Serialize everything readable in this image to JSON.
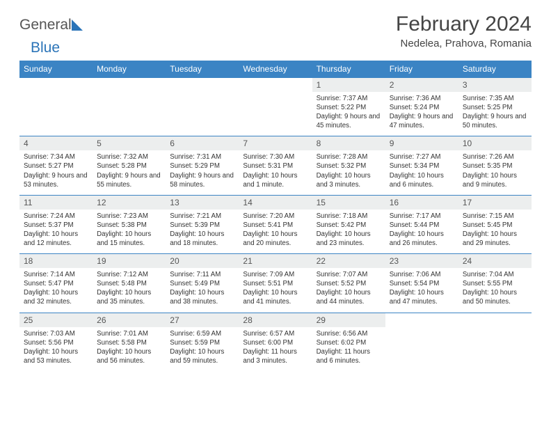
{
  "logo": {
    "part1": "General",
    "part2": "Blue"
  },
  "title": "February 2024",
  "location": "Nedelea, Prahova, Romania",
  "dayHeaders": [
    "Sunday",
    "Monday",
    "Tuesday",
    "Wednesday",
    "Thursday",
    "Friday",
    "Saturday"
  ],
  "header_bg": "#3b84c4",
  "daynum_bg": "#eceeee",
  "border_color": "#3b84c4",
  "weeks": [
    [
      null,
      null,
      null,
      null,
      {
        "n": "1",
        "sr": "7:37 AM",
        "ss": "5:22 PM",
        "dl": "9 hours and 45 minutes."
      },
      {
        "n": "2",
        "sr": "7:36 AM",
        "ss": "5:24 PM",
        "dl": "9 hours and 47 minutes."
      },
      {
        "n": "3",
        "sr": "7:35 AM",
        "ss": "5:25 PM",
        "dl": "9 hours and 50 minutes."
      }
    ],
    [
      {
        "n": "4",
        "sr": "7:34 AM",
        "ss": "5:27 PM",
        "dl": "9 hours and 53 minutes."
      },
      {
        "n": "5",
        "sr": "7:32 AM",
        "ss": "5:28 PM",
        "dl": "9 hours and 55 minutes."
      },
      {
        "n": "6",
        "sr": "7:31 AM",
        "ss": "5:29 PM",
        "dl": "9 hours and 58 minutes."
      },
      {
        "n": "7",
        "sr": "7:30 AM",
        "ss": "5:31 PM",
        "dl": "10 hours and 1 minute."
      },
      {
        "n": "8",
        "sr": "7:28 AM",
        "ss": "5:32 PM",
        "dl": "10 hours and 3 minutes."
      },
      {
        "n": "9",
        "sr": "7:27 AM",
        "ss": "5:34 PM",
        "dl": "10 hours and 6 minutes."
      },
      {
        "n": "10",
        "sr": "7:26 AM",
        "ss": "5:35 PM",
        "dl": "10 hours and 9 minutes."
      }
    ],
    [
      {
        "n": "11",
        "sr": "7:24 AM",
        "ss": "5:37 PM",
        "dl": "10 hours and 12 minutes."
      },
      {
        "n": "12",
        "sr": "7:23 AM",
        "ss": "5:38 PM",
        "dl": "10 hours and 15 minutes."
      },
      {
        "n": "13",
        "sr": "7:21 AM",
        "ss": "5:39 PM",
        "dl": "10 hours and 18 minutes."
      },
      {
        "n": "14",
        "sr": "7:20 AM",
        "ss": "5:41 PM",
        "dl": "10 hours and 20 minutes."
      },
      {
        "n": "15",
        "sr": "7:18 AM",
        "ss": "5:42 PM",
        "dl": "10 hours and 23 minutes."
      },
      {
        "n": "16",
        "sr": "7:17 AM",
        "ss": "5:44 PM",
        "dl": "10 hours and 26 minutes."
      },
      {
        "n": "17",
        "sr": "7:15 AM",
        "ss": "5:45 PM",
        "dl": "10 hours and 29 minutes."
      }
    ],
    [
      {
        "n": "18",
        "sr": "7:14 AM",
        "ss": "5:47 PM",
        "dl": "10 hours and 32 minutes."
      },
      {
        "n": "19",
        "sr": "7:12 AM",
        "ss": "5:48 PM",
        "dl": "10 hours and 35 minutes."
      },
      {
        "n": "20",
        "sr": "7:11 AM",
        "ss": "5:49 PM",
        "dl": "10 hours and 38 minutes."
      },
      {
        "n": "21",
        "sr": "7:09 AM",
        "ss": "5:51 PM",
        "dl": "10 hours and 41 minutes."
      },
      {
        "n": "22",
        "sr": "7:07 AM",
        "ss": "5:52 PM",
        "dl": "10 hours and 44 minutes."
      },
      {
        "n": "23",
        "sr": "7:06 AM",
        "ss": "5:54 PM",
        "dl": "10 hours and 47 minutes."
      },
      {
        "n": "24",
        "sr": "7:04 AM",
        "ss": "5:55 PM",
        "dl": "10 hours and 50 minutes."
      }
    ],
    [
      {
        "n": "25",
        "sr": "7:03 AM",
        "ss": "5:56 PM",
        "dl": "10 hours and 53 minutes."
      },
      {
        "n": "26",
        "sr": "7:01 AM",
        "ss": "5:58 PM",
        "dl": "10 hours and 56 minutes."
      },
      {
        "n": "27",
        "sr": "6:59 AM",
        "ss": "5:59 PM",
        "dl": "10 hours and 59 minutes."
      },
      {
        "n": "28",
        "sr": "6:57 AM",
        "ss": "6:00 PM",
        "dl": "11 hours and 3 minutes."
      },
      {
        "n": "29",
        "sr": "6:56 AM",
        "ss": "6:02 PM",
        "dl": "11 hours and 6 minutes."
      },
      null,
      null
    ]
  ],
  "labels": {
    "sunrise": "Sunrise: ",
    "sunset": "Sunset: ",
    "daylight": "Daylight: "
  }
}
